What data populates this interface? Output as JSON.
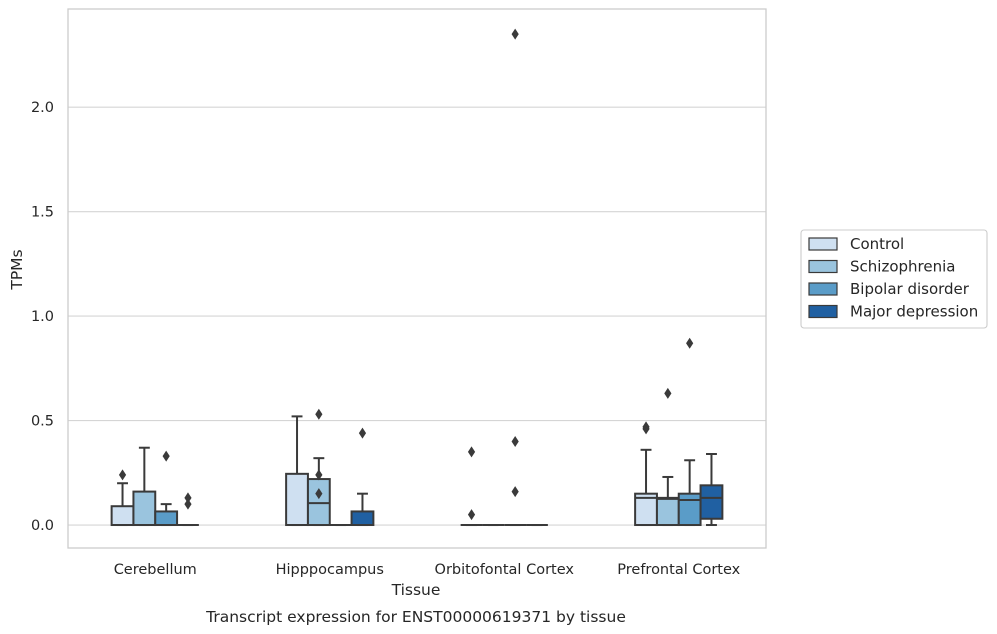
{
  "chart_data": {
    "type": "box",
    "title": "Transcript expression for ENST00000619371 by tissue",
    "xlabel": "Tissue",
    "ylabel": "TPMs",
    "ylim": [
      -0.11,
      2.47
    ],
    "yticks": [
      0.0,
      0.5,
      1.0,
      1.5,
      2.0
    ],
    "ytick_labels": [
      "0.0",
      "0.5",
      "1.0",
      "1.5",
      "2.0"
    ],
    "grid": "horizontal",
    "legend_position": "right",
    "categories": [
      "Cerebellum",
      "Hipppocampus",
      "Orbitofontal Cortex",
      "Prefrontal Cortex"
    ],
    "series": [
      {
        "name": "Control",
        "color": "#cfe0f1",
        "boxes": [
          {
            "q1": 0.0,
            "median": 0.0,
            "q3": 0.09,
            "whisker_low": 0.0,
            "whisker_high": 0.2,
            "outliers": [
              0.24
            ]
          },
          {
            "q1": 0.0,
            "median": 0.0,
            "q3": 0.245,
            "whisker_low": 0.0,
            "whisker_high": 0.52,
            "outliers": []
          },
          {
            "q1": 0.0,
            "median": 0.0,
            "q3": 0.0,
            "whisker_low": 0.0,
            "whisker_high": 0.0,
            "outliers": [
              0.35,
              0.05
            ]
          },
          {
            "q1": 0.0,
            "median": 0.13,
            "q3": 0.15,
            "whisker_low": 0.0,
            "whisker_high": 0.36,
            "outliers": [
              0.46,
              0.47
            ]
          }
        ]
      },
      {
        "name": "Schizophrenia",
        "color": "#9ac4de",
        "boxes": [
          {
            "q1": 0.0,
            "median": 0.0,
            "q3": 0.16,
            "whisker_low": 0.0,
            "whisker_high": 0.37,
            "outliers": []
          },
          {
            "q1": 0.0,
            "median": 0.105,
            "q3": 0.22,
            "whisker_low": 0.0,
            "whisker_high": 0.32,
            "outliers": [
              0.53,
              0.24,
              0.15
            ]
          },
          {
            "q1": 0.0,
            "median": 0.0,
            "q3": 0.0,
            "whisker_low": 0.0,
            "whisker_high": 0.0,
            "outliers": []
          },
          {
            "q1": 0.0,
            "median": 0.125,
            "q3": 0.13,
            "whisker_low": 0.0,
            "whisker_high": 0.23,
            "outliers": [
              0.63
            ]
          }
        ]
      },
      {
        "name": "Bipolar disorder",
        "color": "#5a9cc8",
        "boxes": [
          {
            "q1": 0.0,
            "median": 0.0,
            "q3": 0.065,
            "whisker_low": 0.0,
            "whisker_high": 0.1,
            "outliers": [
              0.33
            ]
          },
          {
            "q1": 0.0,
            "median": 0.0,
            "q3": 0.0,
            "whisker_low": 0.0,
            "whisker_high": 0.0,
            "outliers": []
          },
          {
            "q1": 0.0,
            "median": 0.0,
            "q3": 0.0,
            "whisker_low": 0.0,
            "whisker_high": 0.0,
            "outliers": [
              2.35,
              0.4,
              0.16
            ]
          },
          {
            "q1": 0.0,
            "median": 0.12,
            "q3": 0.15,
            "whisker_low": 0.0,
            "whisker_high": 0.31,
            "outliers": [
              0.87
            ]
          }
        ]
      },
      {
        "name": "Major depression",
        "color": "#2060a2",
        "boxes": [
          {
            "q1": 0.0,
            "median": 0.0,
            "q3": 0.0,
            "whisker_low": 0.0,
            "whisker_high": 0.0,
            "outliers": [
              0.13,
              0.1
            ]
          },
          {
            "q1": 0.0,
            "median": 0.0,
            "q3": 0.065,
            "whisker_low": 0.0,
            "whisker_high": 0.15,
            "outliers": [
              0.44
            ]
          },
          {
            "q1": 0.0,
            "median": 0.0,
            "q3": 0.0,
            "whisker_low": 0.0,
            "whisker_high": 0.0,
            "outliers": []
          },
          {
            "q1": 0.03,
            "median": 0.13,
            "q3": 0.19,
            "whisker_low": 0.0,
            "whisker_high": 0.34,
            "outliers": []
          }
        ]
      }
    ]
  }
}
